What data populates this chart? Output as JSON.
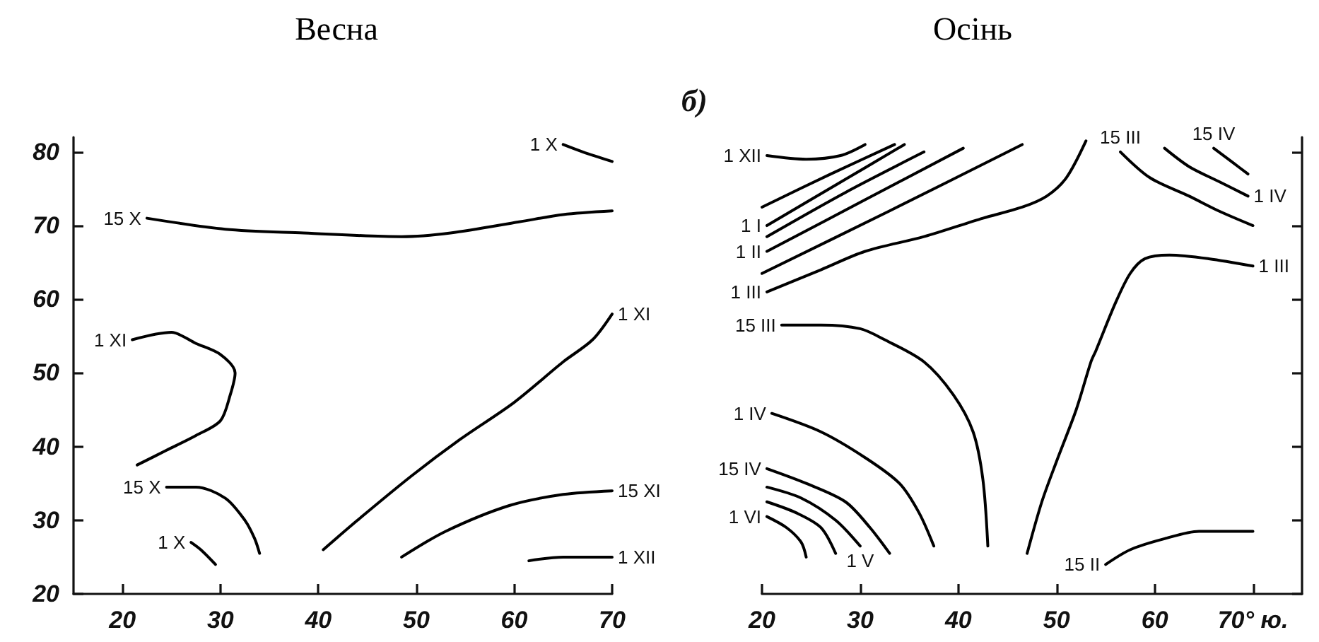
{
  "chart_data": [
    {
      "type": "line",
      "title": "Весна",
      "xlim": [
        15,
        70
      ],
      "xticks": [
        20,
        30,
        40,
        50,
        60,
        70
      ],
      "ylim": [
        20,
        82
      ],
      "yticks": [
        20,
        30,
        40,
        50,
        60,
        70,
        80
      ],
      "series": [
        {
          "name": "1 X",
          "color": "#000000",
          "x": [
            65,
            67,
            70
          ],
          "values": [
            81,
            80,
            78.7
          ]
        },
        {
          "name": "15 X",
          "color": "#000000",
          "x": [
            22.5,
            30.5,
            38.5,
            48.5,
            53.5,
            60.5,
            65,
            70
          ],
          "values": [
            71,
            69.5,
            69,
            68.5,
            69,
            70.5,
            71.5,
            72
          ]
        },
        {
          "name": "1 XI",
          "color": "#000000",
          "x": [
            21,
            25,
            27.5,
            30,
            31.5,
            31,
            30,
            27.5,
            24.5,
            21.5
          ],
          "values": [
            54.5,
            55.5,
            54,
            52.5,
            50,
            47,
            43.5,
            41.5,
            39.5,
            37.5
          ]
        },
        {
          "name": "15 X",
          "color": "#000000",
          "x": [
            24.5,
            27.5,
            30.5,
            32.5,
            33.5,
            34
          ],
          "values": [
            34.5,
            34.5,
            33,
            30,
            27.5,
            25.5
          ]
        },
        {
          "name": "1 X",
          "color": "#000000",
          "x": [
            27,
            28,
            29.5
          ],
          "values": [
            27,
            26,
            24
          ]
        },
        {
          "name": "1 XI",
          "color": "#000000",
          "x": [
            70,
            68,
            65,
            60,
            54.5,
            49.5,
            44,
            40.5
          ],
          "values": [
            58,
            54.5,
            51.5,
            46,
            41,
            36,
            30,
            26
          ]
        },
        {
          "name": "15 XI",
          "color": "#000000",
          "x": [
            70,
            65,
            59.5,
            53,
            48.5
          ],
          "values": [
            34,
            33.5,
            32,
            28.5,
            25
          ]
        },
        {
          "name": "1 XII",
          "color": "#000000",
          "x": [
            70,
            65,
            61.5
          ],
          "values": [
            25,
            25,
            24.5
          ]
        }
      ]
    },
    {
      "type": "line",
      "title": "Осінь",
      "annotations": [
        "б)"
      ],
      "xlim": [
        20,
        75
      ],
      "xticks": [
        20,
        30,
        40,
        50,
        60,
        {
          "value": 70,
          "label": "70° ю."
        }
      ],
      "ylim": [
        20,
        82
      ],
      "yticks": [
        20,
        30,
        40,
        50,
        60,
        70,
        80
      ],
      "tick_labels": "x",
      "series": [
        {
          "name": "1 XII",
          "color": "#000000",
          "x": [
            20.5,
            24.5,
            28,
            30.5
          ],
          "values": [
            79.5,
            79,
            79.5,
            81
          ]
        },
        {
          "color": "#000000",
          "x": [
            20,
            27,
            33.5
          ],
          "values": [
            72.5,
            77,
            81
          ]
        },
        {
          "name": "1 I",
          "color": "#000000",
          "x": [
            20.5,
            27.5,
            34.5
          ],
          "values": [
            70,
            75.5,
            81
          ]
        },
        {
          "color": "#000000",
          "x": [
            20.5,
            28.5,
            36.5
          ],
          "values": [
            68.5,
            74.5,
            80
          ]
        },
        {
          "name": "1 II",
          "color": "#000000",
          "x": [
            20.5,
            30.5,
            40.5
          ],
          "values": [
            66.5,
            73.5,
            80.5
          ]
        },
        {
          "color": "#000000",
          "x": [
            20,
            33,
            46.5
          ],
          "values": [
            63.5,
            72,
            81
          ]
        },
        {
          "name": "1 III",
          "color": "#000000",
          "x": [
            20.5,
            26,
            30.5,
            36.5,
            42.5,
            46.5,
            49,
            51,
            53
          ],
          "values": [
            61,
            64,
            66.5,
            68.5,
            71,
            72.5,
            74,
            76.5,
            81.5
          ]
        },
        {
          "name": "15 III",
          "color": "#000000",
          "x": [
            22,
            26,
            30,
            32.5,
            36.5,
            39.5,
            41.5,
            42.5,
            43
          ],
          "values": [
            56.5,
            56.5,
            56,
            54.5,
            51.5,
            47,
            42,
            35.5,
            26.5
          ]
        },
        {
          "name": "15 III",
          "color": "#000000",
          "x": [
            56.5,
            59.5,
            63.5,
            66.5,
            70
          ],
          "values": [
            80,
            76.5,
            74,
            72,
            70
          ]
        },
        {
          "name": "15 IV",
          "color": "#000000",
          "x": [
            66,
            68,
            69.5
          ],
          "values": [
            80.5,
            78.5,
            77
          ]
        },
        {
          "name": "1 IV",
          "color": "#000000",
          "x": [
            69.5,
            66.5,
            63.5,
            61
          ],
          "values": [
            74,
            76,
            78,
            80.5
          ]
        },
        {
          "name": "1 III",
          "color": "#000000",
          "x": [
            70,
            65.5,
            61.5,
            59,
            57.5,
            56,
            54,
            53.5,
            52,
            50,
            48.5,
            47
          ],
          "values": [
            64.5,
            65.5,
            66,
            65.5,
            63.5,
            59.5,
            53,
            51.5,
            45,
            38,
            32.5,
            25.5
          ]
        },
        {
          "name": "1 IV",
          "color": "#000000",
          "x": [
            21,
            26,
            30.5,
            34,
            36,
            37.5
          ],
          "values": [
            44.5,
            42,
            38.5,
            35,
            31,
            26.5
          ]
        },
        {
          "name": "15 IV",
          "color": "#000000",
          "x": [
            20.5,
            24.5,
            28.5,
            31,
            33
          ],
          "values": [
            37,
            35,
            32.5,
            29,
            25.5
          ]
        },
        {
          "name": "1 V",
          "color": "#000000",
          "x": [
            30,
            27.5,
            24,
            20.5
          ],
          "values": [
            26.5,
            30,
            33,
            34.5
          ]
        },
        {
          "color": "#000000",
          "x": [
            20.5,
            23.5,
            26,
            27.5
          ],
          "values": [
            32.5,
            31,
            29,
            25.5
          ]
        },
        {
          "name": "1 VI",
          "color": "#000000",
          "x": [
            20.5,
            22.5,
            24,
            24.5
          ],
          "values": [
            30.5,
            29,
            27,
            25
          ]
        },
        {
          "name": "15 II",
          "color": "#000000",
          "x": [
            55,
            57.5,
            61,
            64.5,
            70
          ],
          "values": [
            24,
            26,
            27.5,
            28.5,
            28.5
          ]
        }
      ]
    }
  ]
}
